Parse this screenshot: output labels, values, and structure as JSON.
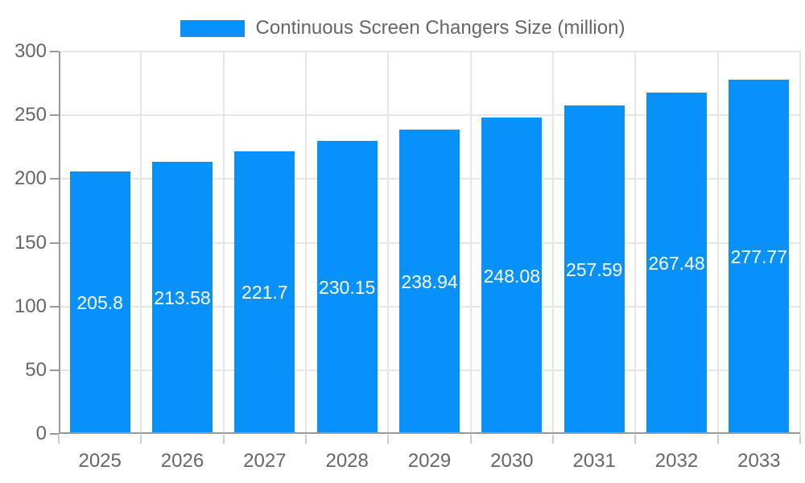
{
  "legend": {
    "label": "Continuous Screen Changers Size (million)"
  },
  "chart_data": {
    "type": "bar",
    "title": "Continuous Screen Changers Size (million)",
    "categories": [
      "2025",
      "2026",
      "2027",
      "2028",
      "2029",
      "2030",
      "2031",
      "2032",
      "2033"
    ],
    "values": [
      205.8,
      213.58,
      221.7,
      230.15,
      238.94,
      248.08,
      257.59,
      267.48,
      277.77
    ],
    "value_labels": [
      "205.8",
      "213.58",
      "221.7",
      "230.15",
      "238.94",
      "248.08",
      "257.59",
      "267.48",
      "277.77"
    ],
    "xlabel": "",
    "ylabel": "",
    "ylim": [
      0,
      300
    ],
    "yticks": [
      0,
      50,
      100,
      150,
      200,
      250,
      300
    ],
    "ytick_labels": [
      "0",
      "50",
      "100",
      "150",
      "200",
      "250",
      "300"
    ],
    "grid": true,
    "legend_position": "top",
    "value_label_position": "center-of-bar",
    "colors": {
      "bar": "#0891f9",
      "axis": "#999999",
      "grid": "#e6e6e6",
      "x_tick": "#cccccc",
      "tick_label": "#666666",
      "value_label": "#ffffff",
      "background": "#ffffff"
    }
  }
}
